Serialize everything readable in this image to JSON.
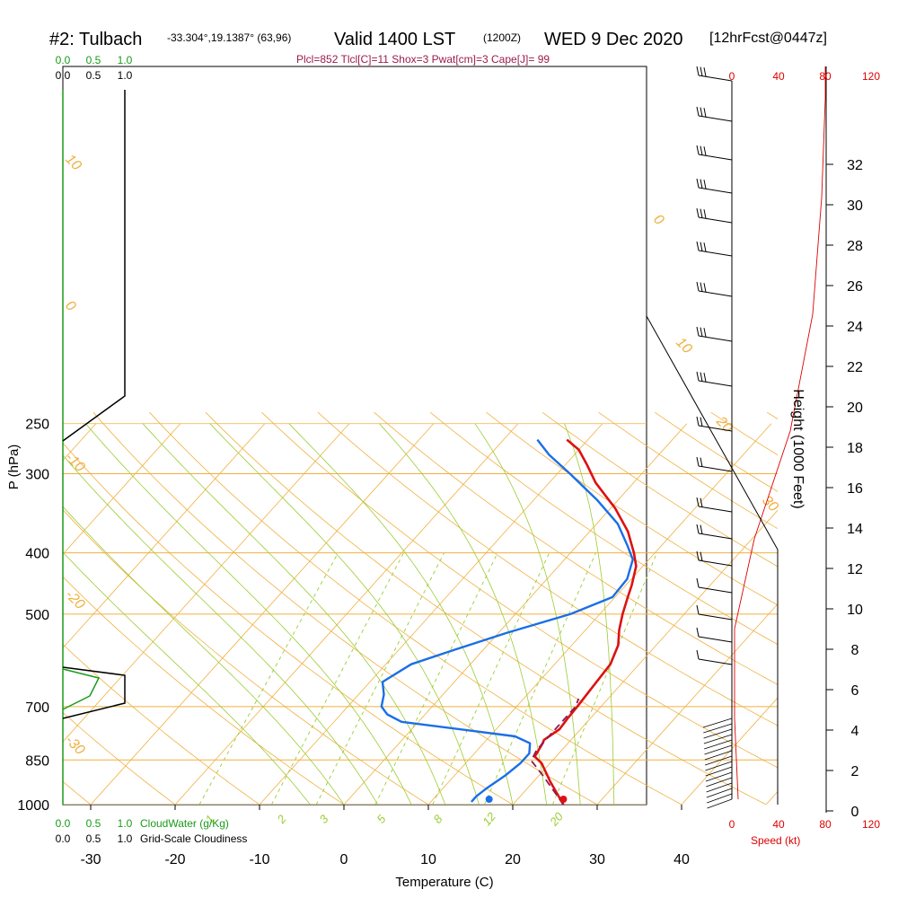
{
  "header": {
    "station": "#2: Tulbach",
    "coords": "-33.304°,19.1387° (63,96)",
    "valid": "Valid 1400 LST",
    "zulu": "(1200Z)",
    "date": "WED 9 Dec 2020",
    "forecast": "[12hrFcst@0447z]"
  },
  "params_line": "Plcl=852 Tlcl[C]=11 Shox=3 Pwat[cm]=3 Cape[J]= 99",
  "colors": {
    "isotherm": "#f0b040",
    "dry_adiabat": "#f0b040",
    "moist_adiabat": "#9acd32",
    "mixing_ratio": "#9acd32",
    "temperature": "#dd1111",
    "dewpoint": "#1a6ee8",
    "parcel": "#8b1a5a",
    "cloud_water": "#1a9a1a",
    "wind": "#000000",
    "speed": "#dd0000"
  },
  "chart_data": {
    "type": "line",
    "x": {
      "label": "Temperature (C)",
      "ticks": [
        -30,
        -20,
        -10,
        0,
        10,
        20,
        30,
        40
      ],
      "tick_labels": [
        "-30",
        "-20",
        "-10",
        "0",
        "10",
        "20",
        "30",
        "40"
      ],
      "range": [
        -34,
        44
      ]
    },
    "y": {
      "label": "P (hPa)",
      "ticks": [
        250,
        300,
        400,
        500,
        700,
        850,
        1000
      ],
      "tick_labels": [
        "250",
        "300",
        "400",
        "500",
        "700",
        "850",
        "1000"
      ],
      "range": [
        1000,
        250
      ],
      "scale": "log"
    },
    "height_axis": {
      "label": "Height (1000 Feet)",
      "ticks": [
        0,
        2,
        4,
        6,
        8,
        10,
        12,
        14,
        16,
        18,
        20,
        22,
        24,
        26,
        28,
        30,
        32
      ],
      "tick_labels": [
        "0",
        "2",
        "4",
        "6",
        "8",
        "10",
        "12",
        "14",
        "16",
        "18",
        "20",
        "22",
        "24",
        "26",
        "28",
        "30",
        "32"
      ]
    },
    "speed_axis": {
      "label": "Speed (kt)",
      "tick_labels_top": [
        "0",
        "40",
        "80",
        "120"
      ],
      "tick_labels_bottom": [
        "0",
        "40",
        "80",
        "120"
      ]
    },
    "cloud_axis": {
      "cloudwater_label": "CloudWater (g/Kg)",
      "cloudiness_label": "Grid-Scale Cloudiness",
      "tick_labels": [
        "0.0",
        "0.5",
        "1.0"
      ]
    },
    "isotherm_labels": [
      "10",
      "0",
      "-10",
      "-20",
      "-30",
      "0",
      "10",
      "20",
      "30"
    ],
    "mixing_ratio_labels": [
      "1",
      "2",
      "3",
      "5",
      "8",
      "12",
      "20"
    ],
    "series": [
      {
        "name": "Temperature",
        "points": [
          [
            26,
            1000
          ],
          [
            22,
            920
          ],
          [
            19,
            860
          ],
          [
            17.5,
            840
          ],
          [
            17,
            800
          ],
          [
            16.8,
            790
          ],
          [
            17.5,
            760
          ],
          [
            17.3,
            730
          ],
          [
            17.2,
            700
          ],
          [
            16.9,
            650
          ],
          [
            16.6,
            600
          ],
          [
            15.5,
            560
          ],
          [
            14,
            530
          ],
          [
            12.7,
            500
          ],
          [
            11.5,
            470
          ],
          [
            10.7,
            450
          ],
          [
            9.2,
            420
          ],
          [
            7.5,
            400
          ],
          [
            4.5,
            370
          ],
          [
            0.5,
            340
          ],
          [
            -4.5,
            310
          ],
          [
            -7.5,
            290
          ],
          [
            -10,
            275
          ],
          [
            -12.5,
            265
          ]
        ]
      },
      {
        "name": "Dewpoint",
        "points": [
          [
            14.8,
            990
          ],
          [
            14.8,
            970
          ],
          [
            15.2,
            940
          ],
          [
            16,
            900
          ],
          [
            16.5,
            860
          ],
          [
            16.5,
            830
          ],
          [
            15.5,
            800
          ],
          [
            13,
            780
          ],
          [
            -2,
            740
          ],
          [
            -4.5,
            720
          ],
          [
            -6,
            700
          ],
          [
            -7,
            670
          ],
          [
            -8.5,
            640
          ],
          [
            -7,
            600
          ],
          [
            -3.5,
            570
          ],
          [
            1,
            535
          ],
          [
            6.5,
            500
          ],
          [
            9.7,
            470
          ],
          [
            9.5,
            440
          ],
          [
            8.1,
            410
          ],
          [
            6,
            390
          ],
          [
            2.5,
            360
          ],
          [
            -2.5,
            330
          ],
          [
            -8.5,
            300
          ],
          [
            -13,
            280
          ],
          [
            -16,
            265
          ]
        ]
      },
      {
        "name": "Parcel",
        "points": [
          [
            26,
            1000
          ],
          [
            20.5,
            900
          ],
          [
            17.5,
            852
          ],
          [
            17,
            820
          ],
          [
            17,
            780
          ],
          [
            17,
            740
          ],
          [
            17,
            700
          ],
          [
            16.5,
            680
          ]
        ]
      }
    ],
    "surface": {
      "temperature": 26,
      "dewpoint": 17.2
    }
  }
}
